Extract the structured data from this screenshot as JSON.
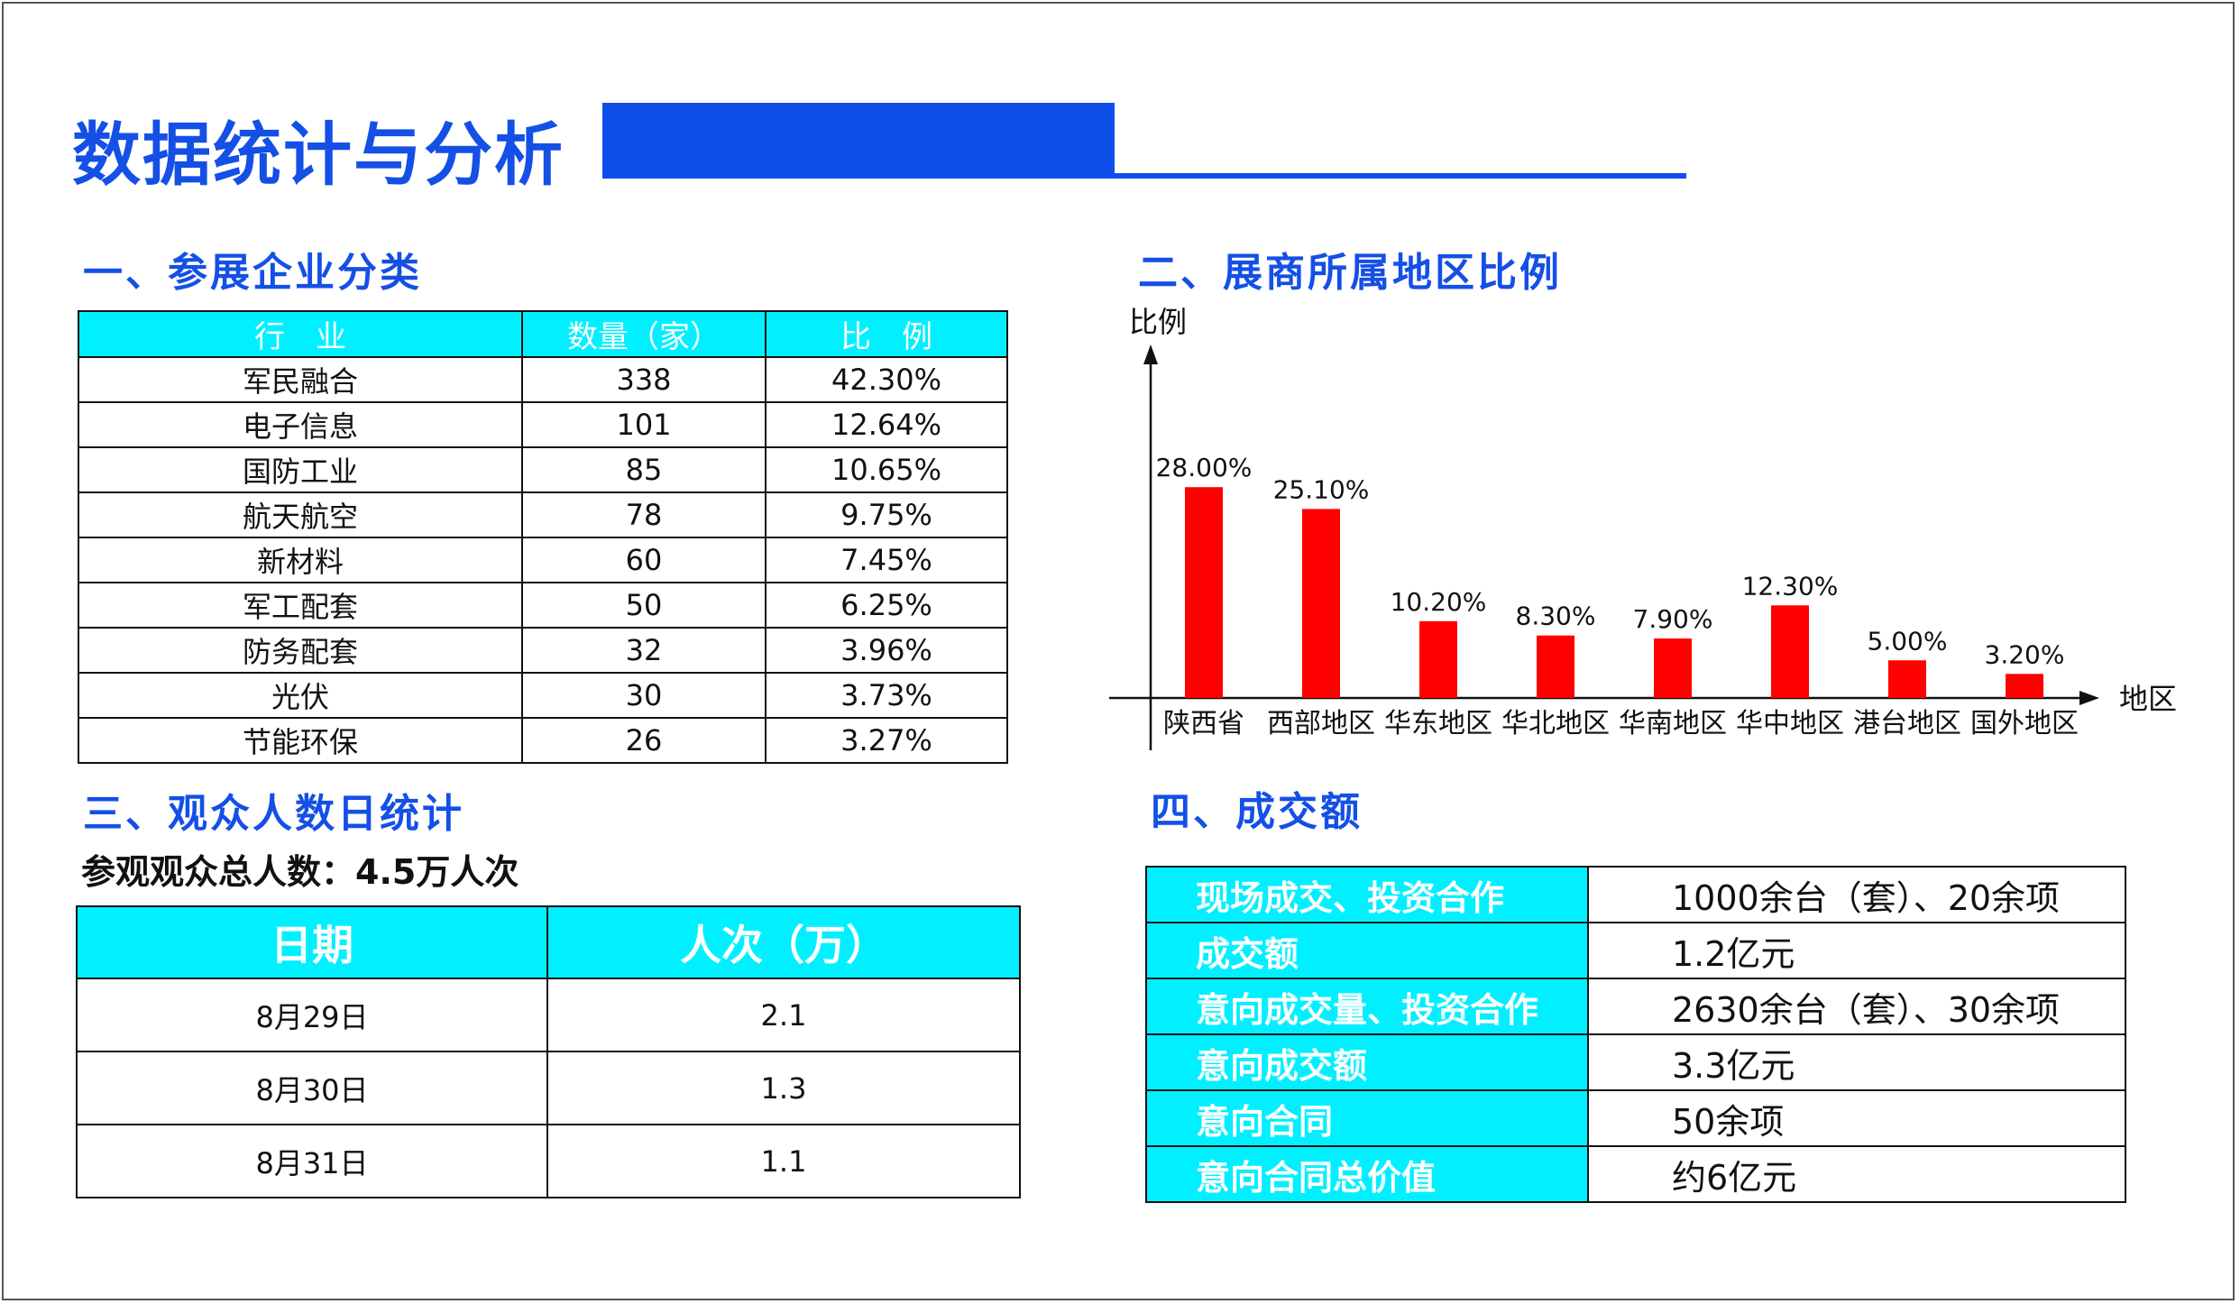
{
  "header": {
    "title": "数据统计与分析"
  },
  "section1": {
    "title": "一、参展企业分类",
    "columns": [
      "行　业",
      "数量（家）",
      "比　例"
    ],
    "rows": [
      [
        "军民融合",
        "338",
        "42.30%"
      ],
      [
        "电子信息",
        "101",
        "12.64%"
      ],
      [
        "国防工业",
        "85",
        "10.65%"
      ],
      [
        "航天航空",
        "78",
        "9.75%"
      ],
      [
        "新材料",
        "60",
        "7.45%"
      ],
      [
        "军工配套",
        "50",
        "6.25%"
      ],
      [
        "防务配套",
        "32",
        "3.96%"
      ],
      [
        "光伏",
        "30",
        "3.73%"
      ],
      [
        "节能环保",
        "26",
        "3.27%"
      ]
    ]
  },
  "section2": {
    "title": "二、展商所属地区比例",
    "chart_data": {
      "type": "bar",
      "categories": [
        "陕西省",
        "西部地区",
        "华东地区",
        "华北地区",
        "华南地区",
        "华中地区",
        "港台地区",
        "国外地区"
      ],
      "values": [
        28.0,
        25.1,
        10.2,
        8.3,
        7.9,
        12.3,
        5.0,
        3.2
      ],
      "labels": [
        "28.00%",
        "25.10%",
        "10.20%",
        "8.30%",
        "7.90%",
        "12.30%",
        "5.00%",
        "3.20%"
      ],
      "xlabel": "地区",
      "ylabel": "比例",
      "grid": false,
      "bar_color": "#ff0000"
    }
  },
  "section3": {
    "title": "三、观众人数日统计",
    "summary": "参观观众总人数：4.5万人次",
    "columns": [
      "日期",
      "人次（万）"
    ],
    "rows": [
      [
        "8月29日",
        "2.1"
      ],
      [
        "8月30日",
        "1.3"
      ],
      [
        "8月31日",
        "1.1"
      ]
    ]
  },
  "section4": {
    "title": "四、成交额",
    "rows": [
      [
        "现场成交、投资合作",
        "1000余台（套）、20余项"
      ],
      [
        "成交额",
        "1.2亿元"
      ],
      [
        "意向成交量、投资合作",
        "2630余台（套）、30余项"
      ],
      [
        "意向成交额",
        "3.3亿元"
      ],
      [
        "意向合同",
        "50余项"
      ],
      [
        "意向合同总价值",
        "约6亿元"
      ]
    ]
  },
  "colors": {
    "accent": "#1450e6",
    "header_fill": "#00f0ff",
    "bar": "#ff0000"
  }
}
